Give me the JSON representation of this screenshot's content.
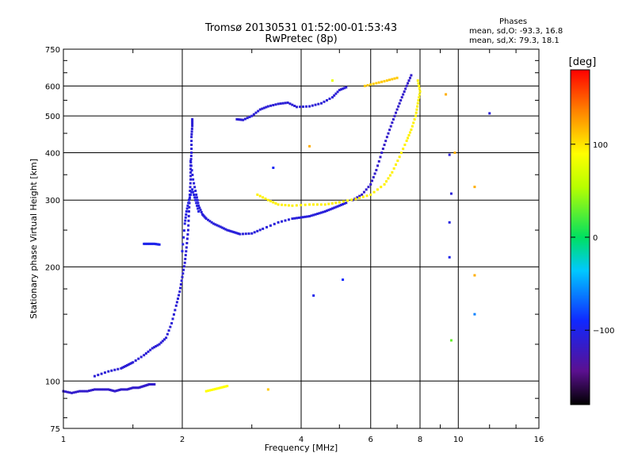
{
  "title": "Tromsø 20130531 01:52:00-01:53:43",
  "subtitle": "RwPretec (8p)",
  "stats": {
    "heading": "Phases",
    "line_o": "mean, sd,O:  -93.3, 16.8",
    "line_x": "mean, sd,X:  79.3, 18.1"
  },
  "colorbar": {
    "label": "[deg]",
    "range": [
      -180,
      180
    ],
    "ticks": [
      100,
      0,
      -100
    ],
    "tick_labels": [
      "100",
      "0",
      "−100"
    ]
  },
  "chart_data": {
    "type": "scatter",
    "xlabel": "Frequency [MHz]",
    "ylabel": "Stationary phase Virtual Height [km]",
    "xscale": "log",
    "yscale": "log",
    "xlim": [
      1,
      16
    ],
    "ylim": [
      75,
      750
    ],
    "xticks": [
      1,
      2,
      4,
      6,
      8,
      10,
      16
    ],
    "xtick_labels": [
      "1",
      "2",
      "4",
      "6",
      "8",
      "10",
      "16"
    ],
    "yticks": [
      75,
      100,
      200,
      300,
      400,
      500,
      600,
      750
    ],
    "ytick_labels": [
      "75",
      "100",
      "200",
      "300",
      "400",
      "500",
      "600",
      "750"
    ],
    "grid": true,
    "color_by": "phase",
    "traces": [
      {
        "phase": -115,
        "points": [
          [
            1.0,
            94
          ],
          [
            1.05,
            93
          ],
          [
            1.1,
            94
          ],
          [
            1.15,
            94
          ],
          [
            1.2,
            95
          ],
          [
            1.25,
            95
          ],
          [
            1.3,
            95
          ],
          [
            1.35,
            94
          ],
          [
            1.4,
            95
          ],
          [
            1.45,
            95
          ],
          [
            1.5,
            96
          ],
          [
            1.55,
            96
          ],
          [
            1.6,
            97
          ],
          [
            1.65,
            98
          ],
          [
            1.7,
            98
          ]
        ]
      },
      {
        "phase": -110,
        "points": [
          [
            1.2,
            103
          ],
          [
            1.3,
            106
          ],
          [
            1.4,
            108
          ],
          [
            1.45,
            110
          ],
          [
            1.5,
            112
          ],
          [
            1.6,
            117
          ],
          [
            1.68,
            122
          ],
          [
            1.75,
            125
          ],
          [
            1.82,
            130
          ],
          [
            1.88,
            142
          ],
          [
            1.93,
            158
          ],
          [
            1.97,
            172
          ],
          [
            2.0,
            188
          ],
          [
            2.03,
            205
          ],
          [
            2.05,
            225
          ],
          [
            2.07,
            250
          ],
          [
            2.08,
            280
          ],
          [
            2.09,
            310
          ],
          [
            2.1,
            340
          ],
          [
            2.1,
            370
          ],
          [
            2.11,
            400
          ],
          [
            2.11,
            440
          ],
          [
            2.12,
            470
          ],
          [
            2.12,
            490
          ]
        ]
      },
      {
        "phase": -108,
        "points": [
          [
            2.1,
            380
          ],
          [
            2.13,
            340
          ],
          [
            2.17,
            310
          ],
          [
            2.2,
            290
          ],
          [
            2.25,
            275
          ],
          [
            2.3,
            268
          ],
          [
            2.4,
            260
          ],
          [
            2.5,
            255
          ],
          [
            2.6,
            250
          ],
          [
            2.7,
            247
          ],
          [
            2.8,
            244
          ],
          [
            3.0,
            245
          ],
          [
            3.2,
            252
          ],
          [
            3.5,
            262
          ],
          [
            3.8,
            268
          ],
          [
            4.0,
            270
          ],
          [
            4.2,
            272
          ],
          [
            4.4,
            276
          ],
          [
            4.6,
            280
          ],
          [
            4.8,
            285
          ],
          [
            5.0,
            290
          ],
          [
            5.2,
            295
          ]
        ]
      },
      {
        "phase": -105,
        "points": [
          [
            2.0,
            220
          ],
          [
            2.03,
            260
          ],
          [
            2.05,
            280
          ],
          [
            2.08,
            300
          ],
          [
            2.12,
            320
          ],
          [
            2.16,
            300
          ],
          [
            2.2,
            280
          ]
        ]
      },
      {
        "phase": -100,
        "points": [
          [
            1.6,
            230
          ],
          [
            1.65,
            230
          ],
          [
            1.7,
            230
          ],
          [
            1.75,
            229
          ]
        ]
      },
      {
        "phase": -110,
        "points": [
          [
            2.75,
            490
          ],
          [
            2.85,
            488
          ],
          [
            3.0,
            500
          ],
          [
            3.15,
            520
          ],
          [
            3.3,
            530
          ],
          [
            3.5,
            538
          ],
          [
            3.7,
            542
          ],
          [
            3.9,
            528
          ],
          [
            4.2,
            530
          ],
          [
            4.5,
            540
          ],
          [
            4.8,
            560
          ],
          [
            5.0,
            585
          ],
          [
            5.2,
            595
          ]
        ]
      },
      {
        "phase": -115,
        "points": [
          [
            5.4,
            300
          ],
          [
            5.7,
            310
          ],
          [
            6.0,
            330
          ],
          [
            6.2,
            360
          ],
          [
            6.4,
            400
          ],
          [
            6.6,
            440
          ],
          [
            6.8,
            480
          ],
          [
            7.0,
            520
          ],
          [
            7.2,
            560
          ],
          [
            7.4,
            600
          ],
          [
            7.6,
            640
          ]
        ]
      },
      {
        "phase": 95,
        "points": [
          [
            3.1,
            310
          ],
          [
            3.3,
            300
          ],
          [
            3.5,
            292
          ],
          [
            3.8,
            290
          ],
          [
            4.2,
            292
          ],
          [
            4.6,
            292
          ],
          [
            5.0,
            296
          ],
          [
            5.5,
            302
          ],
          [
            6.0,
            310
          ],
          [
            6.5,
            330
          ],
          [
            6.8,
            355
          ],
          [
            7.1,
            390
          ],
          [
            7.4,
            430
          ],
          [
            7.6,
            460
          ],
          [
            7.8,
            500
          ],
          [
            7.9,
            540
          ],
          [
            8.0,
            580
          ],
          [
            7.9,
            620
          ]
        ]
      },
      {
        "phase": 90,
        "points": [
          [
            2.3,
            94
          ],
          [
            2.4,
            95
          ],
          [
            2.5,
            96
          ],
          [
            2.6,
            97
          ]
        ]
      },
      {
        "phase": 110,
        "points": [
          [
            5.8,
            600
          ],
          [
            6.2,
            610
          ],
          [
            6.6,
            620
          ],
          [
            7.0,
            630
          ]
        ]
      }
    ],
    "sparse_points": [
      {
        "x": 4.2,
        "y": 416,
        "phase": 120
      },
      {
        "x": 4.3,
        "y": 168,
        "phase": -100
      },
      {
        "x": 3.4,
        "y": 365,
        "phase": -95
      },
      {
        "x": 9.5,
        "y": 395,
        "phase": -110
      },
      {
        "x": 9.6,
        "y": 312,
        "phase": -110
      },
      {
        "x": 9.5,
        "y": 262,
        "phase": -105
      },
      {
        "x": 9.5,
        "y": 212,
        "phase": -100
      },
      {
        "x": 9.8,
        "y": 400,
        "phase": 120
      },
      {
        "x": 11.0,
        "y": 325,
        "phase": 120
      },
      {
        "x": 11.0,
        "y": 190,
        "phase": 120
      },
      {
        "x": 12.0,
        "y": 508,
        "phase": -110
      },
      {
        "x": 9.3,
        "y": 570,
        "phase": 120
      },
      {
        "x": 4.8,
        "y": 620,
        "phase": 80
      },
      {
        "x": 5.1,
        "y": 185,
        "phase": -90
      },
      {
        "x": 9.6,
        "y": 128,
        "phase": 30
      },
      {
        "x": 11.0,
        "y": 150,
        "phase": -60
      },
      {
        "x": 3.3,
        "y": 95,
        "phase": 110
      }
    ]
  }
}
